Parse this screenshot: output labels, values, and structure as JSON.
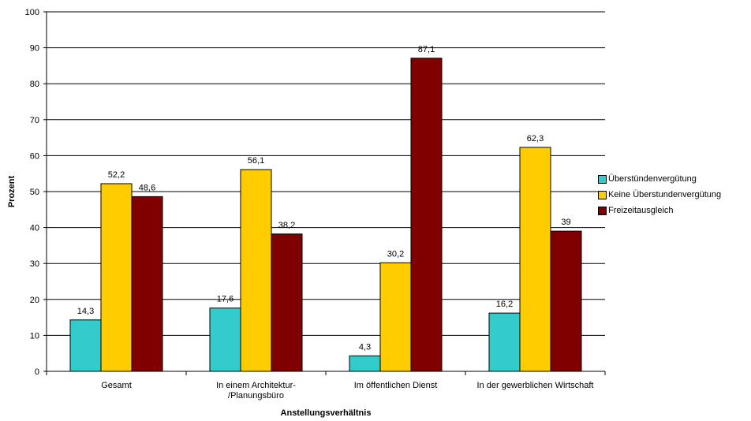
{
  "chart_data": {
    "type": "bar",
    "title": "",
    "xlabel": "Anstellungsverhältnis",
    "ylabel": "Prozent",
    "ylim": [
      0,
      100
    ],
    "yticks": [
      0,
      10,
      20,
      30,
      40,
      50,
      60,
      70,
      80,
      90,
      100
    ],
    "grid": true,
    "legend_position": "right",
    "categories": [
      [
        "Gesamt"
      ],
      [
        "In einem Architektur-",
        "/Planungsbüro"
      ],
      [
        "Im öffentlichen Dienst"
      ],
      [
        "In der gewerblichen Wirtschaft"
      ]
    ],
    "series": [
      {
        "name": "Überstündenvergütung",
        "color": "#33CCCC",
        "values": [
          14.3,
          17.6,
          4.3,
          16.2
        ],
        "labels": [
          "14,3",
          "17,6",
          "4,3",
          "16,2"
        ]
      },
      {
        "name": "Keine Überstundenvergütung",
        "color": "#FFCC00",
        "values": [
          52.2,
          56.1,
          30.2,
          62.3
        ],
        "labels": [
          "52,2",
          "56,1",
          "30,2",
          "62,3"
        ]
      },
      {
        "name": "Freizeitausgleich",
        "color": "#800000",
        "values": [
          48.6,
          38.2,
          87.1,
          39
        ],
        "labels": [
          "48,6",
          "38,2",
          "87,1",
          "39"
        ]
      }
    ]
  }
}
